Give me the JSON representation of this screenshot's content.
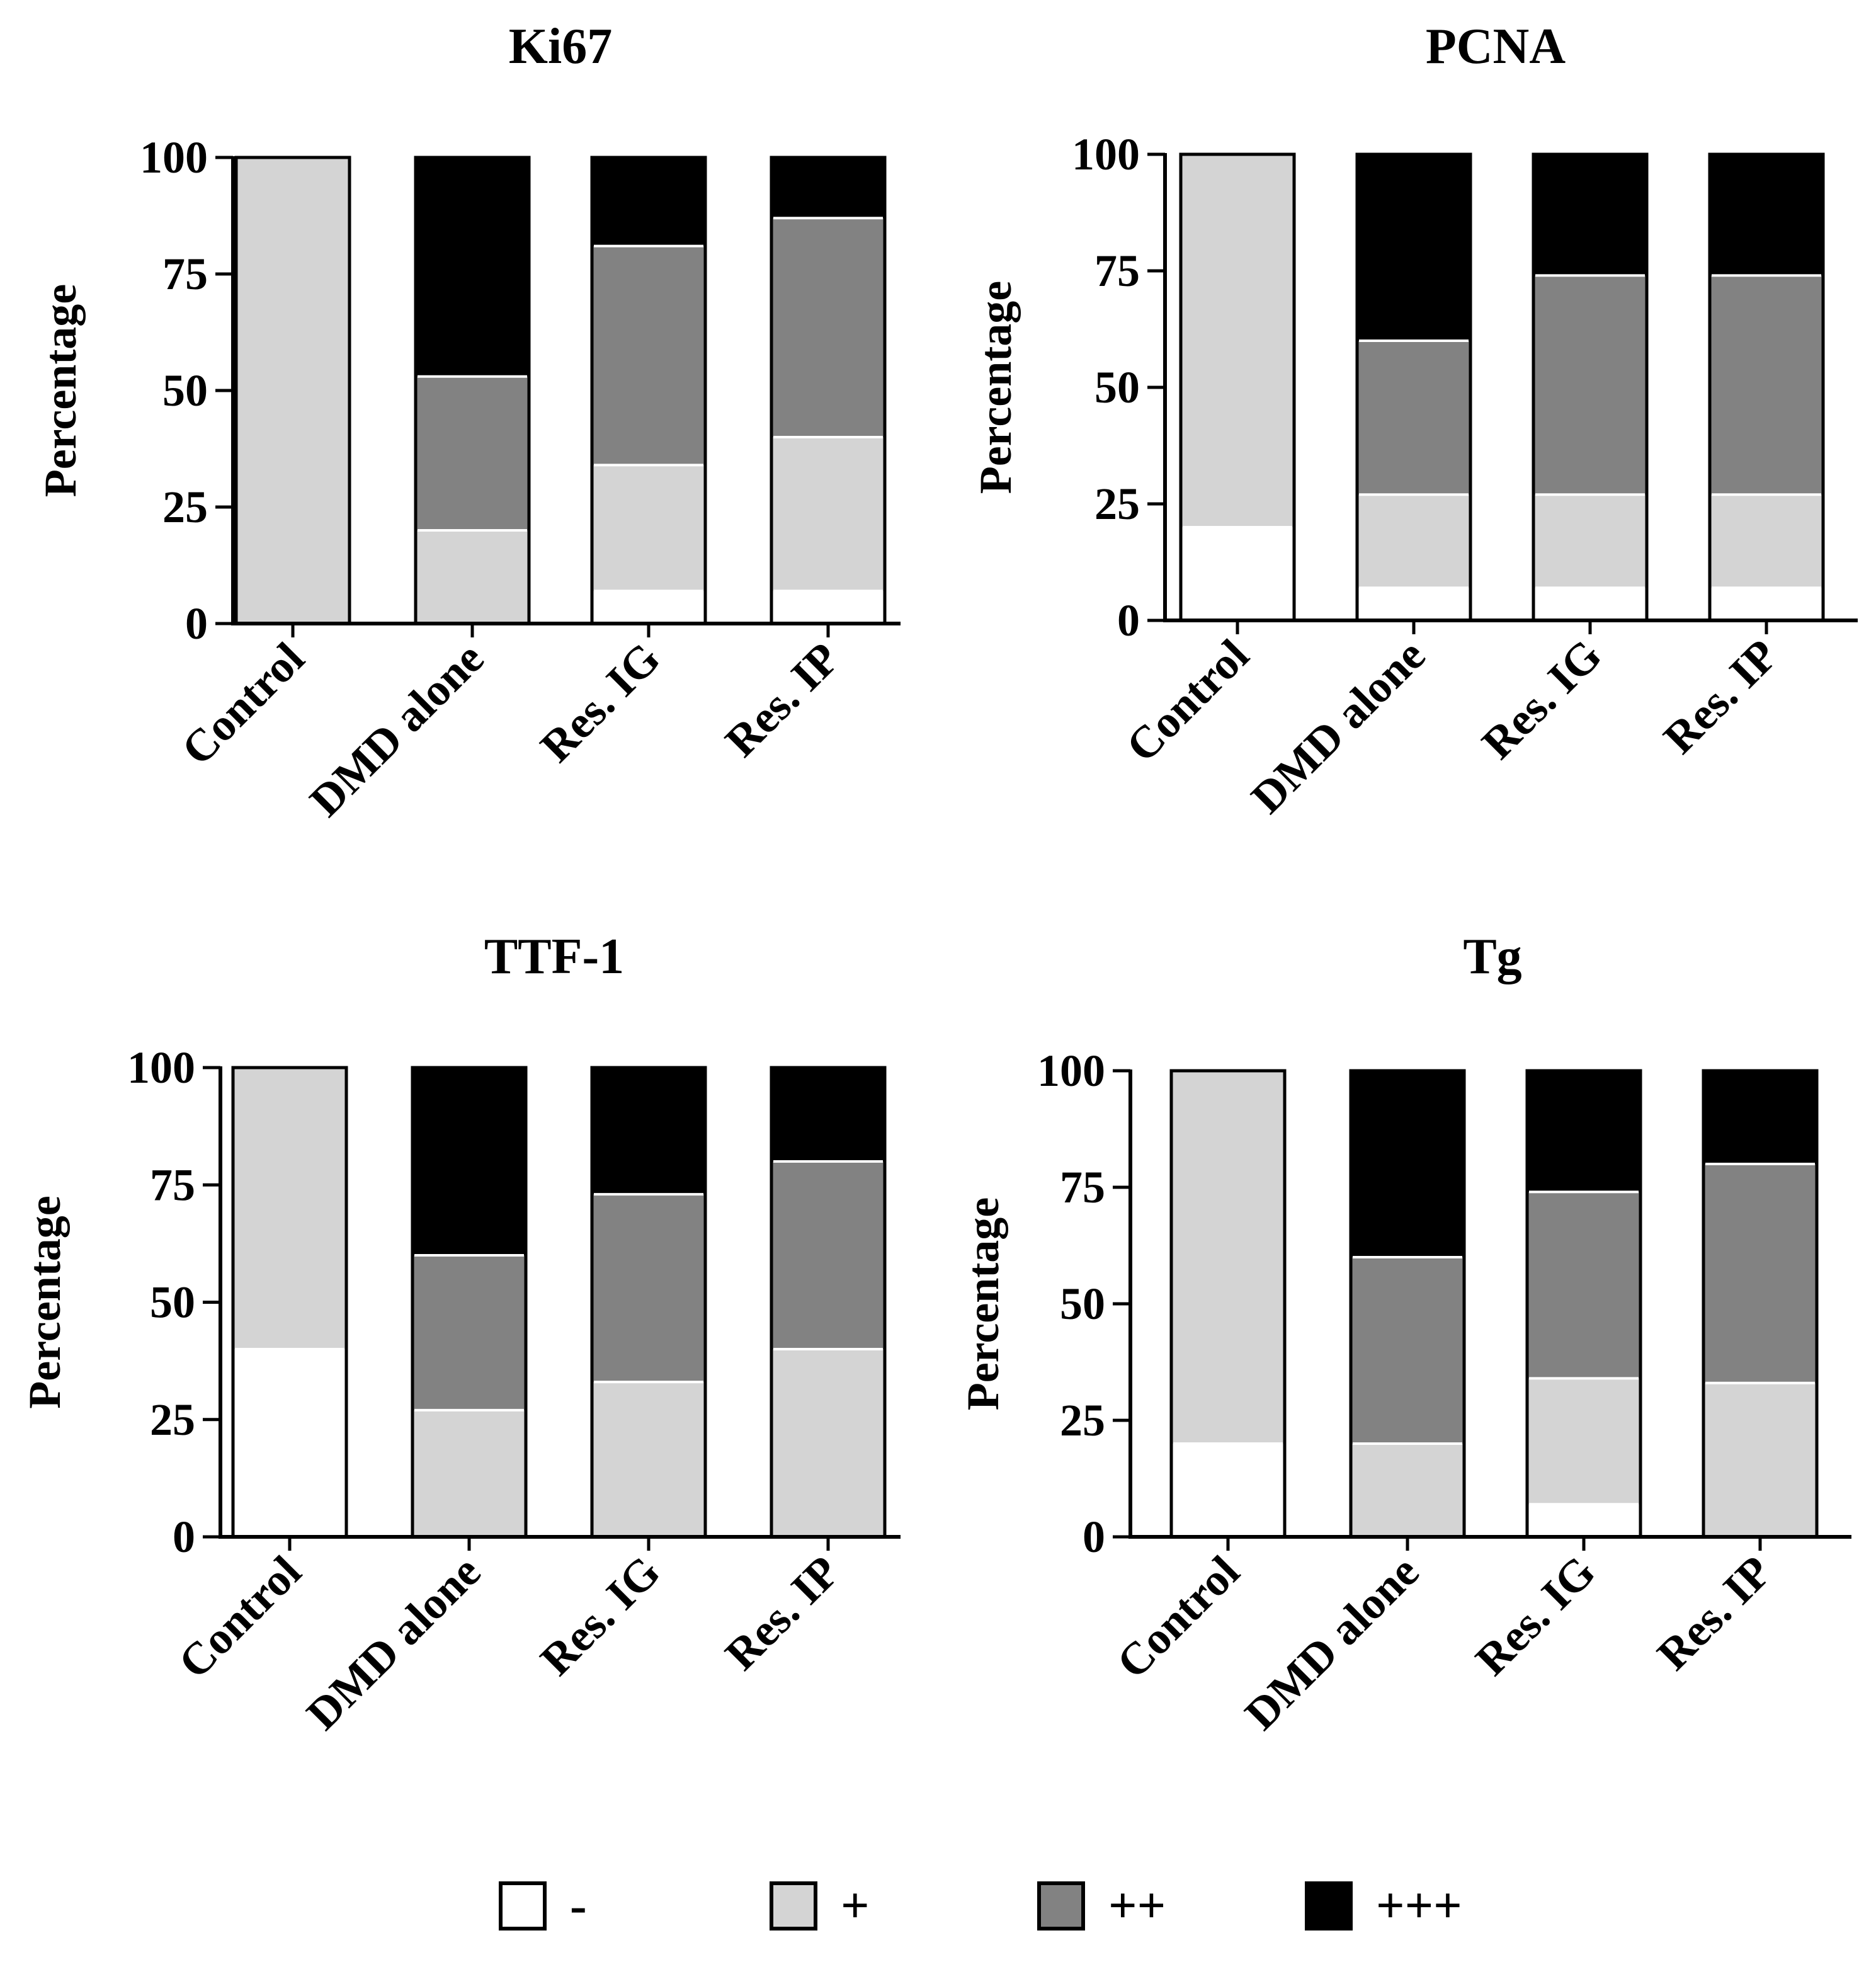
{
  "chart_data": [
    {
      "type": "bar",
      "stacked": true,
      "title": "Ki67",
      "ylabel": "Percentage",
      "xlabel": "",
      "ylim": [
        0,
        100
      ],
      "yticks": [
        "0",
        "25",
        "50",
        "75",
        "100"
      ],
      "categories": [
        "Control",
        "DMD alone",
        "Res. IG",
        "Res. IP"
      ],
      "series": [
        {
          "name": "-",
          "values": [
            0,
            0,
            7,
            7
          ]
        },
        {
          "name": "+",
          "values": [
            100,
            20,
            27,
            33
          ]
        },
        {
          "name": "++",
          "values": [
            0,
            33,
            47,
            47
          ]
        },
        {
          "name": "+++",
          "values": [
            0,
            47,
            19,
            13
          ]
        }
      ]
    },
    {
      "type": "bar",
      "stacked": true,
      "title": "PCNA",
      "ylabel": "Percentage",
      "xlabel": "",
      "ylim": [
        0,
        100
      ],
      "yticks": [
        "0",
        "25",
        "50",
        "75",
        "100"
      ],
      "categories": [
        "Control",
        "DMD alone",
        "Res. IG",
        "Res. IP"
      ],
      "series": [
        {
          "name": "-",
          "values": [
            20,
            7,
            7,
            7
          ]
        },
        {
          "name": "+",
          "values": [
            80,
            20,
            20,
            20
          ]
        },
        {
          "name": "++",
          "values": [
            0,
            33,
            47,
            47
          ]
        },
        {
          "name": "+++",
          "values": [
            0,
            40,
            26,
            26
          ]
        }
      ]
    },
    {
      "type": "bar",
      "stacked": true,
      "title": "TTF-1",
      "ylabel": "Percentage",
      "xlabel": "",
      "ylim": [
        0,
        100
      ],
      "yticks": [
        "0",
        "25",
        "50",
        "75",
        "100"
      ],
      "categories": [
        "Control",
        "DMD alone",
        "Res. IG",
        "Res. IP"
      ],
      "series": [
        {
          "name": "-",
          "values": [
            40,
            0,
            0,
            0
          ]
        },
        {
          "name": "+",
          "values": [
            60,
            27,
            33,
            40
          ]
        },
        {
          "name": "++",
          "values": [
            0,
            33,
            40,
            40
          ]
        },
        {
          "name": "+++",
          "values": [
            0,
            40,
            27,
            20
          ]
        }
      ]
    },
    {
      "type": "bar",
      "stacked": true,
      "title": "Tg",
      "ylabel": "Percentage",
      "xlabel": "",
      "ylim": [
        0,
        100
      ],
      "yticks": [
        "0",
        "25",
        "50",
        "75",
        "100"
      ],
      "categories": [
        "Control",
        "DMD alone",
        "Res. IG",
        "Res. IP"
      ],
      "series": [
        {
          "name": "-",
          "values": [
            20,
            0,
            7,
            0
          ]
        },
        {
          "name": "+",
          "values": [
            80,
            20,
            27,
            33
          ]
        },
        {
          "name": "++",
          "values": [
            0,
            40,
            40,
            47
          ]
        },
        {
          "name": "+++",
          "values": [
            0,
            40,
            26,
            20
          ]
        }
      ]
    }
  ],
  "legend": {
    "position": "bottom",
    "items": [
      {
        "label": "-",
        "color": "#ffffff"
      },
      {
        "label": "+",
        "color": "#d4d4d4"
      },
      {
        "label": "++",
        "color": "#828282"
      },
      {
        "label": "+++",
        "color": "#000000"
      }
    ]
  },
  "colors": {
    "series": [
      "#ffffff",
      "#d4d4d4",
      "#828282",
      "#000000"
    ],
    "axis": "#000000"
  }
}
